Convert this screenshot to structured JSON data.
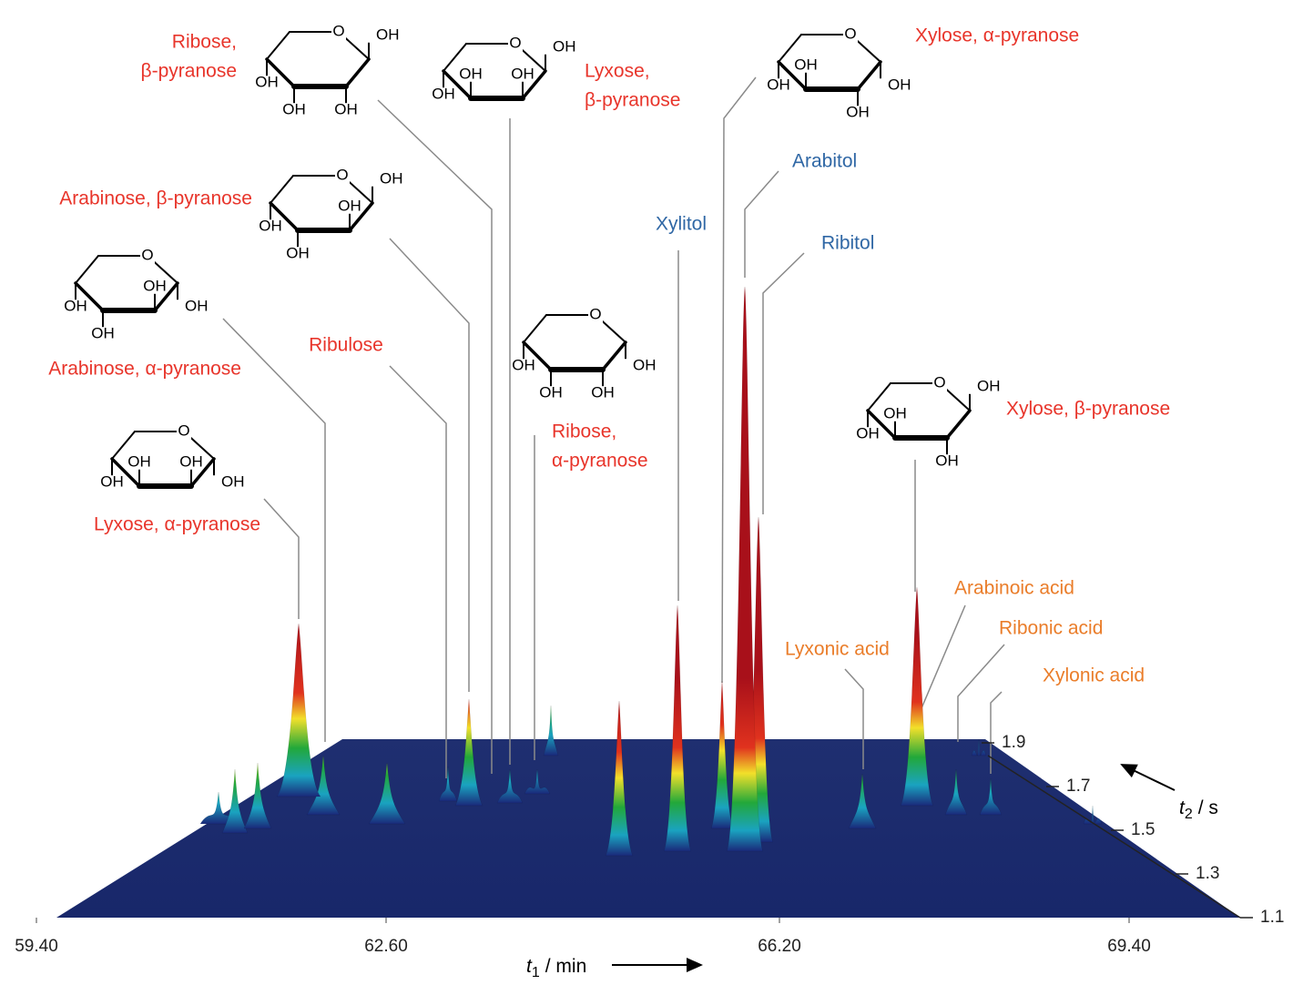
{
  "chart_data": {
    "type": "surface",
    "xlabel": {
      "symbol": "t",
      "subscript": "1",
      "unit": "/ min"
    },
    "ylabel": {
      "symbol": "t",
      "subscript": "2",
      "unit": "/ s"
    },
    "xlim": [
      59.4,
      69.4
    ],
    "xticks": [
      {
        "value": 59.4,
        "label": "59.40"
      },
      {
        "value": 62.6,
        "label": "62.60"
      },
      {
        "value": 66.2,
        "label": "66.20"
      },
      {
        "value": 69.4,
        "label": "69.40"
      }
    ],
    "ylim": [
      1.1,
      1.9
    ],
    "yticks": [
      1.1,
      1.3,
      1.5,
      1.7,
      1.9
    ],
    "annotations": [
      {
        "lines": [
          "Ribose,",
          "β-pyranose"
        ],
        "color": "#e8352b"
      },
      {
        "lines": [
          "Lyxose,",
          "β-pyranose"
        ],
        "color": "#e8352b"
      },
      {
        "lines": [
          "Xylose, α-pyranose"
        ],
        "color": "#e8352b"
      },
      {
        "lines": [
          "Arabinose, β-pyranose"
        ],
        "color": "#e8352b"
      },
      {
        "lines": [
          "Arabinose, α-pyranose"
        ],
        "color": "#e8352b"
      },
      {
        "lines": [
          "Ribulose"
        ],
        "color": "#e8352b"
      },
      {
        "lines": [
          "Ribose,",
          "α-pyranose"
        ],
        "color": "#e8352b"
      },
      {
        "lines": [
          "Lyxose, α-pyranose"
        ],
        "color": "#e8352b"
      },
      {
        "lines": [
          "Xylitol"
        ],
        "color": "#2f67a5"
      },
      {
        "lines": [
          "Arabitol"
        ],
        "color": "#2f67a5"
      },
      {
        "lines": [
          "Ribitol"
        ],
        "color": "#2f67a5"
      },
      {
        "lines": [
          "Xylose, β-pyranose"
        ],
        "color": "#e8352b"
      },
      {
        "lines": [
          "Arabinoic acid"
        ],
        "color": "#ea7d2a"
      },
      {
        "lines": [
          "Ribonic acid"
        ],
        "color": "#ea7d2a"
      },
      {
        "lines": [
          "Lyxonic acid"
        ],
        "color": "#ea7d2a"
      },
      {
        "lines": [
          "Xylonic acid"
        ],
        "color": "#ea7d2a"
      }
    ],
    "structures": [
      {
        "ring_atom": "O",
        "substituents": [
          "OH",
          "OH",
          "OH",
          "OH"
        ]
      },
      {
        "ring_atom": "O",
        "substituents": [
          "OH",
          "OH",
          "OH",
          "OH"
        ]
      },
      {
        "ring_atom": "O",
        "substituents": [
          "OH",
          "OH",
          "OH",
          "OH"
        ]
      },
      {
        "ring_atom": "O",
        "substituents": [
          "OH",
          "OH",
          "OH",
          "OH"
        ]
      },
      {
        "ring_atom": "O",
        "substituents": [
          "OH",
          "OH",
          "OH",
          "OH"
        ]
      },
      {
        "ring_atom": "O",
        "substituents": [
          "OH",
          "OH",
          "OH",
          "OH"
        ]
      },
      {
        "ring_atom": "O",
        "substituents": [
          "OH",
          "OH",
          "OH",
          "OH"
        ]
      },
      {
        "ring_atom": "O",
        "substituents": [
          "OH",
          "OH",
          "OH",
          "OH"
        ]
      }
    ]
  }
}
